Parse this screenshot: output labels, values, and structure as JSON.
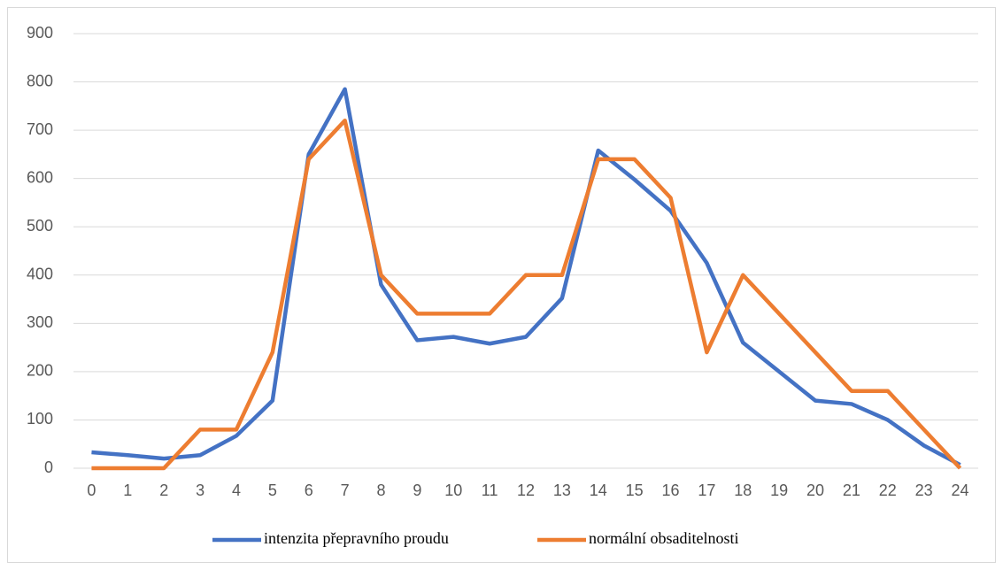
{
  "chart_data": {
    "type": "line",
    "categories": [
      "0",
      "1",
      "2",
      "3",
      "4",
      "5",
      "6",
      "7",
      "8",
      "9",
      "10",
      "11",
      "12",
      "13",
      "14",
      "15",
      "16",
      "17",
      "18",
      "19",
      "20",
      "21",
      "22",
      "23",
      "24"
    ],
    "series": [
      {
        "name": "intenzita přepravního proudu",
        "color": "#4472c4",
        "values": [
          33,
          27,
          20,
          27,
          67,
          140,
          650,
          785,
          380,
          265,
          272,
          258,
          272,
          352,
          658,
          598,
          533,
          425,
          260,
          200,
          140,
          133,
          100,
          47,
          7
        ]
      },
      {
        "name": "normální obsaditelnosti",
        "color": "#ed7d31",
        "values": [
          0,
          0,
          0,
          80,
          80,
          240,
          640,
          720,
          400,
          320,
          320,
          320,
          400,
          400,
          640,
          640,
          560,
          240,
          400,
          320,
          240,
          160,
          160,
          80,
          0
        ]
      }
    ],
    "ylim": [
      0,
      900
    ],
    "yticks": [
      0,
      100,
      200,
      300,
      400,
      500,
      600,
      700,
      800,
      900
    ],
    "grid": true,
    "legend": "bottom"
  }
}
